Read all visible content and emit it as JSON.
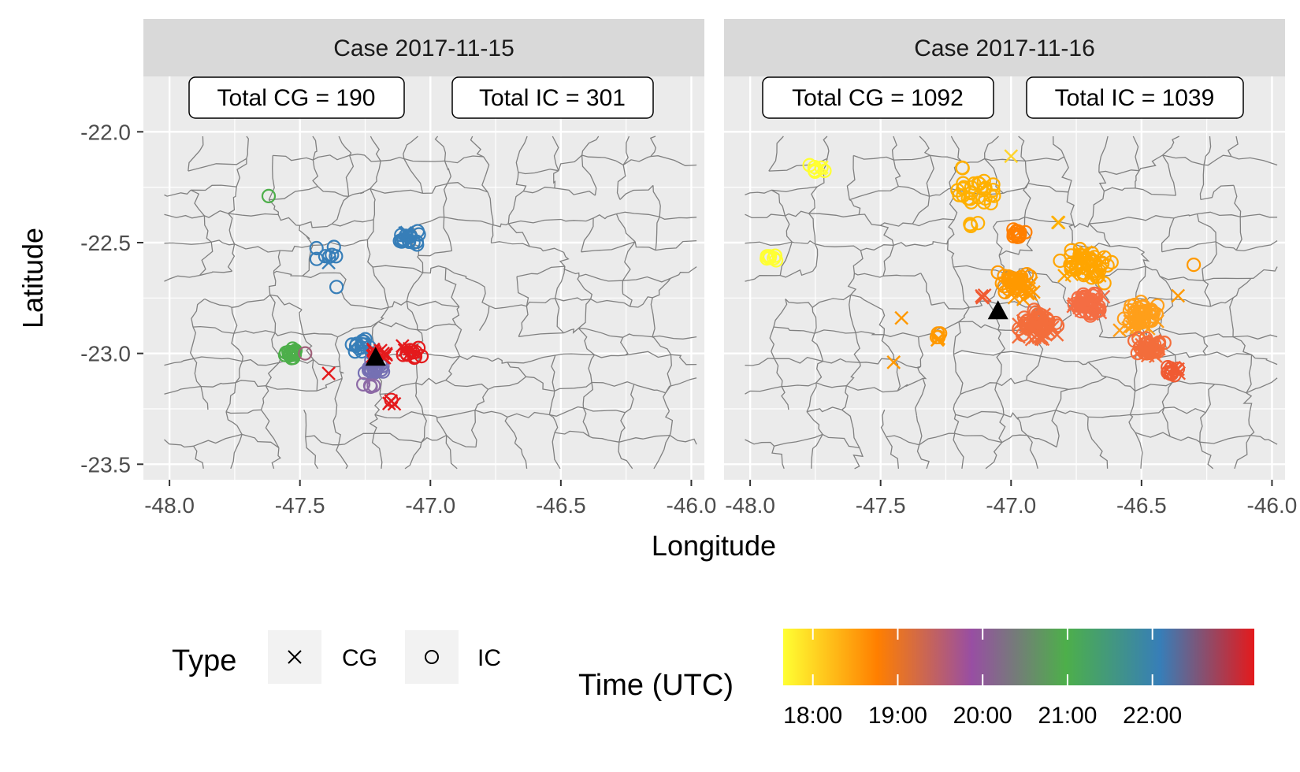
{
  "chart_data": {
    "type": "scatter",
    "x_label": "Longitude",
    "y_label": "Latitude",
    "xlim": [
      -48.1,
      -45.95
    ],
    "ylim": [
      -23.57,
      -21.75
    ],
    "x_ticks": [
      -48.0,
      -47.5,
      -47.0,
      -46.5,
      -46.0
    ],
    "x_tick_labels": [
      "-48.0",
      "-47.5",
      "-47.0",
      "-46.5",
      "-46.0"
    ],
    "y_ticks": [
      -22.0,
      -22.5,
      -23.0,
      -23.5
    ],
    "y_tick_labels": [
      "-22.0",
      "-22.5",
      "-23.0",
      "-23.5"
    ],
    "background": "#ebebeb",
    "strip_color": "#d9d9d9",
    "grid": true,
    "legend_type": {
      "title": "Type",
      "items": [
        {
          "label": "CG",
          "shape": "cross"
        },
        {
          "label": "IC",
          "shape": "circle"
        }
      ]
    },
    "legend_time": {
      "title": "Time (UTC)",
      "tick_labels": [
        "18:00",
        "19:00",
        "20:00",
        "21:00",
        "22:00"
      ],
      "tick_hours": [
        18,
        19,
        20,
        21,
        22
      ],
      "range_hours": [
        17.65,
        23.2
      ],
      "colors": [
        "#ffff33",
        "#ff7f00",
        "#984ea3",
        "#4daf4a",
        "#377eb8",
        "#e41a1c"
      ]
    },
    "panels": [
      {
        "strip": "Case 2017-11-15",
        "annotations": [
          "Total CG = 190",
          "Total IC = 301"
        ],
        "station": {
          "lon": -47.21,
          "lat": -23.02
        },
        "clusters": [
          {
            "lon": -47.62,
            "lat": -22.29,
            "spread": 0.01,
            "n": 1,
            "type": "IC",
            "color": "#4daf4a"
          },
          {
            "lon": -47.4,
            "lat": -22.55,
            "spread": 0.04,
            "n": 7,
            "type": "IC",
            "color": "#377eb8"
          },
          {
            "lon": -47.39,
            "lat": -22.59,
            "spread": 0.01,
            "n": 1,
            "type": "CG",
            "color": "#377eb8"
          },
          {
            "lon": -47.36,
            "lat": -22.7,
            "spread": 0.01,
            "n": 1,
            "type": "IC",
            "color": "#377eb8"
          },
          {
            "lon": -47.09,
            "lat": -22.48,
            "spread": 0.04,
            "n": 16,
            "type": "IC",
            "color": "#377eb8"
          },
          {
            "lon": -47.1,
            "lat": -22.46,
            "spread": 0.02,
            "n": 3,
            "type": "CG",
            "color": "#377eb8"
          },
          {
            "lon": -47.53,
            "lat": -23.0,
            "spread": 0.025,
            "n": 18,
            "type": "IC",
            "color": "#4daf4a"
          },
          {
            "lon": -47.48,
            "lat": -23.0,
            "spread": 0.01,
            "n": 1,
            "type": "IC",
            "color": "#a0617a"
          },
          {
            "lon": -47.39,
            "lat": -23.09,
            "spread": 0.01,
            "n": 1,
            "type": "CG",
            "color": "#e41a1c"
          },
          {
            "lon": -47.26,
            "lat": -22.97,
            "spread": 0.04,
            "n": 14,
            "type": "IC",
            "color": "#377eb8"
          },
          {
            "lon": -47.21,
            "lat": -23.06,
            "spread": 0.04,
            "n": 26,
            "type": "IC",
            "color": "#7570b3"
          },
          {
            "lon": -47.24,
            "lat": -23.14,
            "spread": 0.02,
            "n": 4,
            "type": "IC",
            "color": "#8d6aa6"
          },
          {
            "lon": -47.2,
            "lat": -23.0,
            "spread": 0.03,
            "n": 12,
            "type": "CG",
            "color": "#e41a1c"
          },
          {
            "lon": -47.08,
            "lat": -23.0,
            "spread": 0.04,
            "n": 10,
            "type": "IC",
            "color": "#e41a1c"
          },
          {
            "lon": -47.08,
            "lat": -22.99,
            "spread": 0.03,
            "n": 5,
            "type": "CG",
            "color": "#e41a1c"
          },
          {
            "lon": -47.15,
            "lat": -23.22,
            "spread": 0.02,
            "n": 3,
            "type": "CG",
            "color": "#e41a1c"
          },
          {
            "lon": -47.15,
            "lat": -23.21,
            "spread": 0.01,
            "n": 1,
            "type": "IC",
            "color": "#e41a1c"
          }
        ]
      },
      {
        "strip": "Case 2017-11-16",
        "annotations": [
          "Total CG = 1092",
          "Total IC = 1039"
        ],
        "station": {
          "lon": -47.05,
          "lat": -22.81
        },
        "clusters": [
          {
            "lon": -47.74,
            "lat": -22.17,
            "spread": 0.03,
            "n": 6,
            "type": "IC",
            "color": "#ffff33"
          },
          {
            "lon": -47.73,
            "lat": -22.16,
            "spread": 0.01,
            "n": 2,
            "type": "CG",
            "color": "#ffff33"
          },
          {
            "lon": -47.92,
            "lat": -22.57,
            "spread": 0.03,
            "n": 8,
            "type": "IC",
            "color": "#ffff33"
          },
          {
            "lon": -47.0,
            "lat": -22.11,
            "spread": 0.01,
            "n": 1,
            "type": "CG",
            "color": "#ffd42a"
          },
          {
            "lon": -47.14,
            "lat": -22.27,
            "spread": 0.07,
            "n": 26,
            "type": "IC",
            "color": "#ffb000"
          },
          {
            "lon": -47.19,
            "lat": -22.16,
            "spread": 0.01,
            "n": 2,
            "type": "IC",
            "color": "#ffb000"
          },
          {
            "lon": -47.15,
            "lat": -22.42,
            "spread": 0.02,
            "n": 4,
            "type": "IC",
            "color": "#ffb000"
          },
          {
            "lon": -46.97,
            "lat": -22.46,
            "spread": 0.03,
            "n": 12,
            "type": "IC",
            "color": "#ff7f00"
          },
          {
            "lon": -46.82,
            "lat": -22.41,
            "spread": 0.01,
            "n": 2,
            "type": "CG",
            "color": "#ffb000"
          },
          {
            "lon": -46.7,
            "lat": -22.6,
            "spread": 0.09,
            "n": 40,
            "type": "IC",
            "color": "#ffa500"
          },
          {
            "lon": -46.7,
            "lat": -22.62,
            "spread": 0.08,
            "n": 15,
            "type": "CG",
            "color": "#ffa500"
          },
          {
            "lon": -46.98,
            "lat": -22.68,
            "spread": 0.06,
            "n": 30,
            "type": "IC",
            "color": "#ff9900"
          },
          {
            "lon": -46.95,
            "lat": -22.7,
            "spread": 0.06,
            "n": 15,
            "type": "CG",
            "color": "#ff9900"
          },
          {
            "lon": -46.9,
            "lat": -22.87,
            "spread": 0.06,
            "n": 40,
            "type": "IC",
            "color": "#f36d3b"
          },
          {
            "lon": -46.9,
            "lat": -22.88,
            "spread": 0.06,
            "n": 30,
            "type": "CG",
            "color": "#f36d3b"
          },
          {
            "lon": -46.7,
            "lat": -22.78,
            "spread": 0.06,
            "n": 30,
            "type": "IC",
            "color": "#f46d43"
          },
          {
            "lon": -46.7,
            "lat": -22.78,
            "spread": 0.06,
            "n": 20,
            "type": "CG",
            "color": "#f46d43"
          },
          {
            "lon": -46.5,
            "lat": -22.82,
            "spread": 0.06,
            "n": 35,
            "type": "IC",
            "color": "#ff9f1a"
          },
          {
            "lon": -46.5,
            "lat": -22.85,
            "spread": 0.06,
            "n": 15,
            "type": "CG",
            "color": "#ff9f1a"
          },
          {
            "lon": -46.47,
            "lat": -22.97,
            "spread": 0.05,
            "n": 25,
            "type": "IC",
            "color": "#f36d3b"
          },
          {
            "lon": -46.47,
            "lat": -22.97,
            "spread": 0.05,
            "n": 15,
            "type": "CG",
            "color": "#f36d3b"
          },
          {
            "lon": -46.38,
            "lat": -23.08,
            "spread": 0.03,
            "n": 10,
            "type": "IC",
            "color": "#f05a32"
          },
          {
            "lon": -46.38,
            "lat": -23.08,
            "spread": 0.03,
            "n": 6,
            "type": "CG",
            "color": "#f05a32"
          },
          {
            "lon": -46.3,
            "lat": -22.6,
            "spread": 0.01,
            "n": 1,
            "type": "IC",
            "color": "#ff9900"
          },
          {
            "lon": -46.36,
            "lat": -22.74,
            "spread": 0.01,
            "n": 1,
            "type": "CG",
            "color": "#ff9900"
          },
          {
            "lon": -47.28,
            "lat": -22.92,
            "spread": 0.02,
            "n": 4,
            "type": "IC",
            "color": "#ff9900"
          },
          {
            "lon": -47.27,
            "lat": -22.93,
            "spread": 0.02,
            "n": 3,
            "type": "CG",
            "color": "#ff9900"
          },
          {
            "lon": -47.42,
            "lat": -22.84,
            "spread": 0.01,
            "n": 1,
            "type": "CG",
            "color": "#ff9900"
          },
          {
            "lon": -47.45,
            "lat": -23.04,
            "spread": 0.01,
            "n": 1,
            "type": "CG",
            "color": "#ff9900"
          },
          {
            "lon": -47.1,
            "lat": -22.75,
            "spread": 0.02,
            "n": 4,
            "type": "CG",
            "color": "#f05a32"
          }
        ]
      }
    ]
  }
}
